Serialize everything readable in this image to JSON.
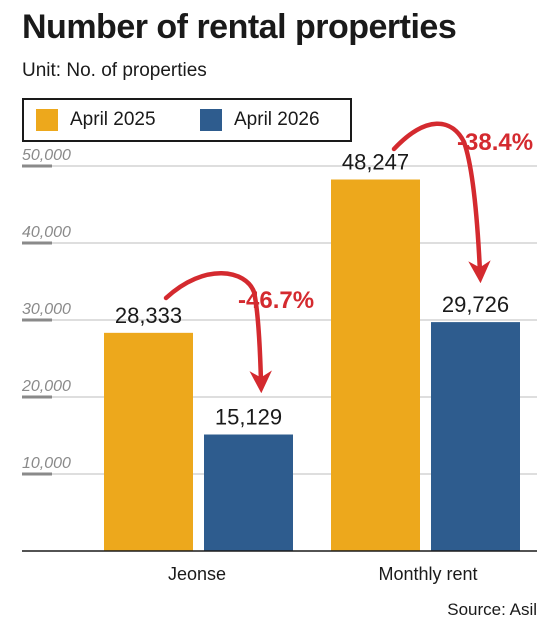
{
  "title": "Number of rental properties",
  "subtitle": "Unit: No. of properties",
  "source": "Source: Asil",
  "colors": {
    "april_2025": "#eda81c",
    "april_2026": "#2e5c8e",
    "arrow": "#d42a2f",
    "axis": "#1a1a1a",
    "grid": "#bdbdbd",
    "tick": "#8a8a8a"
  },
  "chart_data": {
    "type": "bar",
    "categories": [
      "Jeonse",
      "Monthly rent"
    ],
    "series": [
      {
        "name": "April 2025",
        "values": [
          28333,
          48247
        ]
      },
      {
        "name": "April 2026",
        "values": [
          15129,
          29726
        ]
      }
    ],
    "value_labels": [
      [
        "28,333",
        "15,129"
      ],
      [
        "48,247",
        "29,726"
      ]
    ],
    "change_labels": [
      "-46.7%",
      "-38.4%"
    ],
    "yticks": [
      "10,000",
      "20,000",
      "30,000",
      "40,000",
      "50,000"
    ],
    "ytick_values": [
      10000,
      20000,
      30000,
      40000,
      50000
    ],
    "ylim": [
      0,
      50000
    ],
    "grid": true,
    "legend": "top-left"
  }
}
